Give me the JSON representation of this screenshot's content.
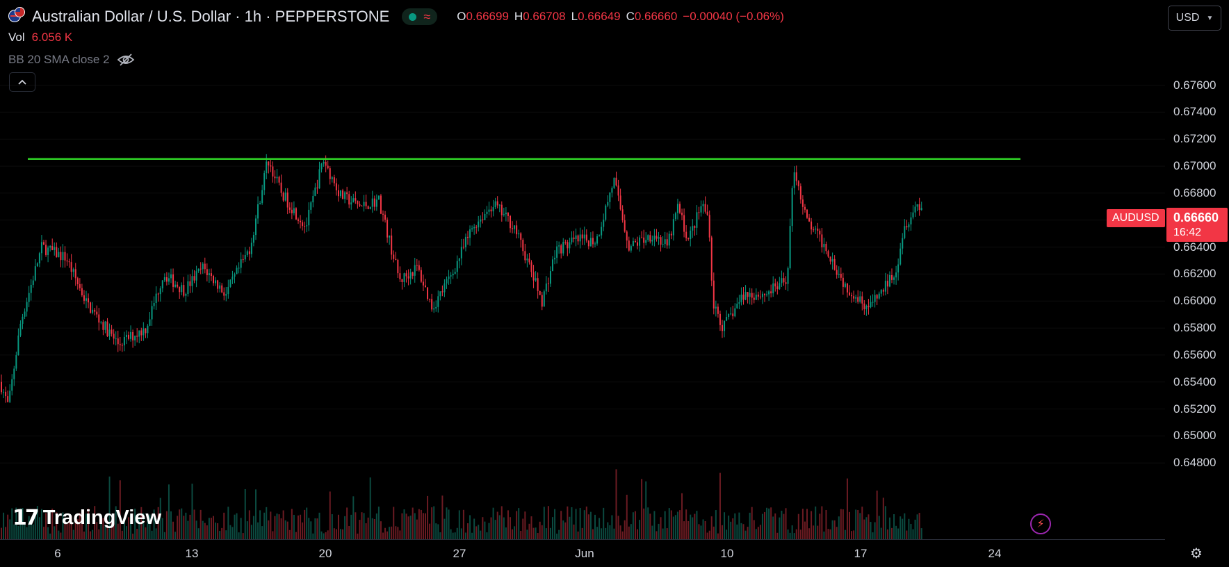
{
  "header": {
    "title": "Australian Dollar / U.S. Dollar · 1h · PEPPERSTONE",
    "status_icon": "market-open-dot",
    "status_wave": "≈",
    "ohlc": {
      "o_label": "O",
      "o": "0.66699",
      "h_label": "H",
      "h": "0.66708",
      "l_label": "L",
      "l": "0.66649",
      "c_label": "C",
      "c": "0.66660",
      "change": "−0.00040 (−0.06%)"
    }
  },
  "volume": {
    "label": "Vol",
    "value": "6.056 K"
  },
  "indicator": {
    "label": "BB 20 SMA close 2",
    "icon": "eye-crossed-icon"
  },
  "collapse_icon": "chevron-up-icon",
  "currency": {
    "value": "USD"
  },
  "symbol_tag": "AUDUSD",
  "last_price": {
    "price": "0.66660",
    "countdown": "16:42"
  },
  "branding": {
    "logo_text": "TradingView",
    "mark": "17"
  },
  "colors": {
    "up": "#089981",
    "down": "#f23645",
    "trendline": "#2fd126",
    "background": "#000000"
  },
  "chart_data": {
    "type": "candlestick",
    "symbol": "AUDUSD",
    "timeframe": "1h",
    "price_ticks": [
      "0.67600",
      "0.67400",
      "0.67200",
      "0.67000",
      "0.66800",
      "0.66600",
      "0.66400",
      "0.66200",
      "0.66000",
      "0.65800",
      "0.65600",
      "0.65400",
      "0.65200",
      "0.65000",
      "0.64800"
    ],
    "time_ticks": [
      "6",
      "13",
      "20",
      "27",
      "Jun",
      "10",
      "17",
      "24"
    ],
    "ylim": [
      0.6476,
      0.6784
    ],
    "price_path": [
      [
        0,
        0.654
      ],
      [
        12,
        0.6522
      ],
      [
        30,
        0.6585
      ],
      [
        60,
        0.664
      ],
      [
        95,
        0.6632
      ],
      [
        125,
        0.6598
      ],
      [
        170,
        0.6568
      ],
      [
        210,
        0.658
      ],
      [
        235,
        0.662
      ],
      [
        265,
        0.6608
      ],
      [
        292,
        0.6625
      ],
      [
        325,
        0.6605
      ],
      [
        360,
        0.664
      ],
      [
        385,
        0.6705
      ],
      [
        405,
        0.668
      ],
      [
        440,
        0.6655
      ],
      [
        465,
        0.6705
      ],
      [
        490,
        0.6678
      ],
      [
        520,
        0.667
      ],
      [
        545,
        0.6675
      ],
      [
        575,
        0.6615
      ],
      [
        600,
        0.6625
      ],
      [
        622,
        0.6595
      ],
      [
        650,
        0.662
      ],
      [
        680,
        0.6655
      ],
      [
        710,
        0.6672
      ],
      [
        740,
        0.6655
      ],
      [
        780,
        0.66
      ],
      [
        800,
        0.6638
      ],
      [
        830,
        0.6645
      ],
      [
        858,
        0.6645
      ],
      [
        883,
        0.669
      ],
      [
        905,
        0.664
      ],
      [
        940,
        0.665
      ],
      [
        960,
        0.664
      ],
      [
        975,
        0.667
      ],
      [
        990,
        0.6645
      ],
      [
        1010,
        0.6672
      ],
      [
        1020,
        0.666
      ],
      [
        1025,
        0.66
      ],
      [
        1040,
        0.658
      ],
      [
        1070,
        0.6605
      ],
      [
        1100,
        0.6605
      ],
      [
        1132,
        0.6615
      ],
      [
        1142,
        0.67
      ],
      [
        1160,
        0.666
      ],
      [
        1190,
        0.6638
      ],
      [
        1215,
        0.6612
      ],
      [
        1250,
        0.6595
      ],
      [
        1270,
        0.6608
      ],
      [
        1290,
        0.6625
      ],
      [
        1300,
        0.6655
      ],
      [
        1320,
        0.6672
      ],
      [
        1330,
        0.6666
      ]
    ],
    "trendline": {
      "from": [
        40,
        0.67053
      ],
      "to": [
        1468,
        0.67053
      ]
    }
  }
}
